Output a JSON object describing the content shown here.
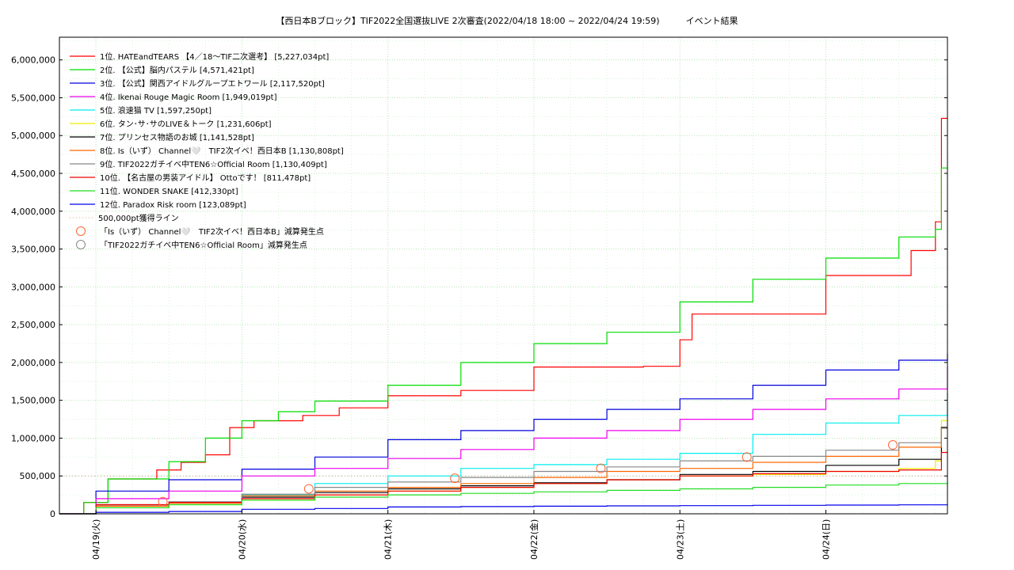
{
  "chart_data": {
    "type": "line",
    "title": "【西日本Bブロック】TIF2022全国選抜LIVE 2次審査(2022/04/18 18:00 ~ 2022/04/24 19:59)　　　イベント結果",
    "xlabel": "",
    "ylabel": "",
    "x_ticks": [
      "04/19(火)",
      "04/20(水)",
      "04/21(木)",
      "04/22(金)",
      "04/23(土)",
      "04/24(日)"
    ],
    "y_ticks": [
      "0",
      "500,000",
      "1,000,000",
      "1,500,000",
      "2,000,000",
      "2,500,000",
      "3,000,000",
      "3,500,000",
      "4,000,000",
      "4,500,000",
      "5,000,000",
      "5,500,000",
      "6,000,000"
    ],
    "ylim": [
      0,
      6300000
    ],
    "xlim": [
      "2022-04-18 18:00",
      "2022-04-24 19:59"
    ],
    "grid": true,
    "legend_position": "top-left",
    "threshold": {
      "label": "500,000pt獲得ライン",
      "value": 500000,
      "color": "#d9a08c"
    },
    "series": [
      {
        "name": "1位. HATEandTEARS 【4／18〜TIF二次選考】 [5,227,034pt]",
        "color": "#ff0000",
        "points": [
          [
            "2022-04-18 18:00",
            0
          ],
          [
            "2022-04-18 22:00",
            150000
          ],
          [
            "2022-04-19 02:00",
            460000
          ],
          [
            "2022-04-19 08:00",
            460000
          ],
          [
            "2022-04-19 10:00",
            580000
          ],
          [
            "2022-04-19 14:00",
            680000
          ],
          [
            "2022-04-19 18:00",
            780000
          ],
          [
            "2022-04-19 22:00",
            1140000
          ],
          [
            "2022-04-20 02:00",
            1230000
          ],
          [
            "2022-04-20 10:00",
            1300000
          ],
          [
            "2022-04-20 16:00",
            1400000
          ],
          [
            "2022-04-21 00:00",
            1560000
          ],
          [
            "2022-04-21 12:00",
            1630000
          ],
          [
            "2022-04-22 00:00",
            1940000
          ],
          [
            "2022-04-22 18:00",
            1950000
          ],
          [
            "2022-04-23 00:00",
            2300000
          ],
          [
            "2022-04-23 02:00",
            2640000
          ],
          [
            "2022-04-23 20:00",
            2640000
          ],
          [
            "2022-04-24 00:00",
            3150000
          ],
          [
            "2022-04-24 14:00",
            3480000
          ],
          [
            "2022-04-24 18:00",
            3860000
          ],
          [
            "2022-04-24 19:00",
            5227034
          ],
          [
            "2022-04-24 19:59",
            5227034
          ]
        ]
      },
      {
        "name": "2位. 【公式】脳内パステル [4,571,421pt]",
        "color": "#00dd00",
        "points": [
          [
            "2022-04-18 18:00",
            0
          ],
          [
            "2022-04-18 22:00",
            150000
          ],
          [
            "2022-04-19 02:00",
            460000
          ],
          [
            "2022-04-19 08:00",
            460000
          ],
          [
            "2022-04-19 12:00",
            690000
          ],
          [
            "2022-04-19 18:00",
            1000000
          ],
          [
            "2022-04-20 00:00",
            1230000
          ],
          [
            "2022-04-20 06:00",
            1350000
          ],
          [
            "2022-04-20 12:00",
            1490000
          ],
          [
            "2022-04-21 00:00",
            1700000
          ],
          [
            "2022-04-21 12:00",
            2000000
          ],
          [
            "2022-04-22 00:00",
            2250000
          ],
          [
            "2022-04-22 12:00",
            2400000
          ],
          [
            "2022-04-23 00:00",
            2800000
          ],
          [
            "2022-04-23 12:00",
            3100000
          ],
          [
            "2022-04-24 00:00",
            3380000
          ],
          [
            "2022-04-24 12:00",
            3660000
          ],
          [
            "2022-04-24 18:00",
            3760000
          ],
          [
            "2022-04-24 19:00",
            4571421
          ],
          [
            "2022-04-24 19:59",
            4571421
          ]
        ]
      },
      {
        "name": "3位. 【公式】関西アイドルグループエトワール [2,117,520pt]",
        "color": "#0000dd",
        "points": [
          [
            "2022-04-18 18:00",
            0
          ],
          [
            "2022-04-19 00:00",
            300000
          ],
          [
            "2022-04-19 12:00",
            450000
          ],
          [
            "2022-04-20 00:00",
            590000
          ],
          [
            "2022-04-20 12:00",
            750000
          ],
          [
            "2022-04-21 00:00",
            980000
          ],
          [
            "2022-04-21 12:00",
            1100000
          ],
          [
            "2022-04-22 00:00",
            1250000
          ],
          [
            "2022-04-22 12:00",
            1380000
          ],
          [
            "2022-04-23 00:00",
            1520000
          ],
          [
            "2022-04-23 12:00",
            1700000
          ],
          [
            "2022-04-24 00:00",
            1900000
          ],
          [
            "2022-04-24 12:00",
            2030000
          ],
          [
            "2022-04-24 19:59",
            2117520
          ]
        ]
      },
      {
        "name": "4位. Ikenai Rouge Magic Room [1,949,019pt]",
        "color": "#ee00ee",
        "points": [
          [
            "2022-04-18 18:00",
            0
          ],
          [
            "2022-04-19 00:00",
            200000
          ],
          [
            "2022-04-19 12:00",
            300000
          ],
          [
            "2022-04-20 00:00",
            500000
          ],
          [
            "2022-04-20 12:00",
            600000
          ],
          [
            "2022-04-21 00:00",
            730000
          ],
          [
            "2022-04-21 12:00",
            850000
          ],
          [
            "2022-04-22 00:00",
            1000000
          ],
          [
            "2022-04-22 12:00",
            1100000
          ],
          [
            "2022-04-23 00:00",
            1250000
          ],
          [
            "2022-04-23 12:00",
            1380000
          ],
          [
            "2022-04-24 00:00",
            1520000
          ],
          [
            "2022-04-24 12:00",
            1650000
          ],
          [
            "2022-04-24 19:59",
            1949019
          ]
        ]
      },
      {
        "name": "5位. 浪速猫 TV [1,597,250pt]",
        "color": "#00eeee",
        "points": [
          [
            "2022-04-18 18:00",
            0
          ],
          [
            "2022-04-19 00:00",
            100000
          ],
          [
            "2022-04-19 12:00",
            150000
          ],
          [
            "2022-04-20 00:00",
            250000
          ],
          [
            "2022-04-20 12:00",
            400000
          ],
          [
            "2022-04-21 00:00",
            500000
          ],
          [
            "2022-04-21 12:00",
            600000
          ],
          [
            "2022-04-22 00:00",
            650000
          ],
          [
            "2022-04-22 12:00",
            720000
          ],
          [
            "2022-04-23 00:00",
            800000
          ],
          [
            "2022-04-23 12:00",
            1050000
          ],
          [
            "2022-04-24 00:00",
            1200000
          ],
          [
            "2022-04-24 12:00",
            1300000
          ],
          [
            "2022-04-24 19:59",
            1597250
          ]
        ]
      },
      {
        "name": "6位. タン･サ･サのLIVE＆トーク [1,231,606pt]",
        "color": "#eeee00",
        "points": [
          [
            "2022-04-18 18:00",
            0
          ],
          [
            "2022-04-19 00:00",
            80000
          ],
          [
            "2022-04-19 12:00",
            120000
          ],
          [
            "2022-04-20 00:00",
            180000
          ],
          [
            "2022-04-20 12:00",
            250000
          ],
          [
            "2022-04-21 00:00",
            300000
          ],
          [
            "2022-04-21 12:00",
            350000
          ],
          [
            "2022-04-22 00:00",
            400000
          ],
          [
            "2022-04-22 12:00",
            450000
          ],
          [
            "2022-04-23 00:00",
            500000
          ],
          [
            "2022-04-23 12:00",
            520000
          ],
          [
            "2022-04-24 00:00",
            560000
          ],
          [
            "2022-04-24 12:00",
            600000
          ],
          [
            "2022-04-24 18:00",
            700000
          ],
          [
            "2022-04-24 19:00",
            1231606
          ],
          [
            "2022-04-24 19:59",
            1231606
          ]
        ]
      },
      {
        "name": "7位. プリンセス物語のお城 [1,141,528pt]",
        "color": "#000000",
        "points": [
          [
            "2022-04-18 18:00",
            0
          ],
          [
            "2022-04-19 00:00",
            100000
          ],
          [
            "2022-04-19 12:00",
            150000
          ],
          [
            "2022-04-20 00:00",
            220000
          ],
          [
            "2022-04-20 12:00",
            280000
          ],
          [
            "2022-04-21 00:00",
            330000
          ],
          [
            "2022-04-21 12:00",
            370000
          ],
          [
            "2022-04-22 00:00",
            410000
          ],
          [
            "2022-04-22 12:00",
            450000
          ],
          [
            "2022-04-23 00:00",
            520000
          ],
          [
            "2022-04-23 12:00",
            560000
          ],
          [
            "2022-04-24 00:00",
            640000
          ],
          [
            "2022-04-24 12:00",
            720000
          ],
          [
            "2022-04-24 19:00",
            1141528
          ],
          [
            "2022-04-24 19:59",
            1141528
          ]
        ]
      },
      {
        "name": "8位. Is（いず） Channel🤍　TIF2次イベ！西日本B [1,130,808pt]",
        "color": "#ff6600",
        "points": [
          [
            "2022-04-18 18:00",
            0
          ],
          [
            "2022-04-19 00:00",
            100000
          ],
          [
            "2022-04-19 12:00",
            140000
          ],
          [
            "2022-04-20 00:00",
            240000
          ],
          [
            "2022-04-20 12:00",
            300000
          ],
          [
            "2022-04-21 00:00",
            350000
          ],
          [
            "2022-04-21 12:00",
            400000
          ],
          [
            "2022-04-22 00:00",
            480000
          ],
          [
            "2022-04-22 12:00",
            560000
          ],
          [
            "2022-04-23 00:00",
            600000
          ],
          [
            "2022-04-23 12:00",
            680000
          ],
          [
            "2022-04-24 00:00",
            760000
          ],
          [
            "2022-04-24 12:00",
            880000
          ],
          [
            "2022-04-24 19:00",
            1130808
          ],
          [
            "2022-04-24 19:59",
            1130808
          ]
        ]
      },
      {
        "name": "9位. TIF2022ガチイベ中TEN6☆Official Room [1,130,409pt]",
        "color": "#888888",
        "points": [
          [
            "2022-04-18 18:00",
            0
          ],
          [
            "2022-04-19 00:00",
            120000
          ],
          [
            "2022-04-19 12:00",
            160000
          ],
          [
            "2022-04-20 00:00",
            260000
          ],
          [
            "2022-04-20 12:00",
            350000
          ],
          [
            "2022-04-21 00:00",
            420000
          ],
          [
            "2022-04-21 12:00",
            480000
          ],
          [
            "2022-04-22 00:00",
            560000
          ],
          [
            "2022-04-22 12:00",
            620000
          ],
          [
            "2022-04-23 00:00",
            700000
          ],
          [
            "2022-04-23 12:00",
            760000
          ],
          [
            "2022-04-24 00:00",
            840000
          ],
          [
            "2022-04-24 12:00",
            940000
          ],
          [
            "2022-04-24 19:00",
            1130409
          ],
          [
            "2022-04-24 19:59",
            1130409
          ]
        ]
      },
      {
        "name": "10位. 【名古屋の男装アイドル】 Ottoです！ [811,478pt]",
        "color": "#ee0000",
        "points": [
          [
            "2022-04-18 18:00",
            0
          ],
          [
            "2022-04-19 00:00",
            120000
          ],
          [
            "2022-04-19 12:00",
            150000
          ],
          [
            "2022-04-20 00:00",
            200000
          ],
          [
            "2022-04-20 12:00",
            250000
          ],
          [
            "2022-04-21 00:00",
            300000
          ],
          [
            "2022-04-21 12:00",
            350000
          ],
          [
            "2022-04-22 00:00",
            400000
          ],
          [
            "2022-04-22 12:00",
            450000
          ],
          [
            "2022-04-23 00:00",
            500000
          ],
          [
            "2022-04-23 12:00",
            530000
          ],
          [
            "2022-04-24 00:00",
            560000
          ],
          [
            "2022-04-24 12:00",
            580000
          ],
          [
            "2022-04-24 19:00",
            811478
          ],
          [
            "2022-04-24 19:59",
            811478
          ]
        ]
      },
      {
        "name": "11位. WONDER SNAKE [412,330pt]",
        "color": "#22dd22",
        "points": [
          [
            "2022-04-18 18:00",
            0
          ],
          [
            "2022-04-19 00:00",
            80000
          ],
          [
            "2022-04-19 12:00",
            120000
          ],
          [
            "2022-04-20 00:00",
            180000
          ],
          [
            "2022-04-20 12:00",
            220000
          ],
          [
            "2022-04-21 00:00",
            250000
          ],
          [
            "2022-04-21 12:00",
            270000
          ],
          [
            "2022-04-22 00:00",
            290000
          ],
          [
            "2022-04-22 12:00",
            310000
          ],
          [
            "2022-04-23 00:00",
            330000
          ],
          [
            "2022-04-23 12:00",
            350000
          ],
          [
            "2022-04-24 00:00",
            380000
          ],
          [
            "2022-04-24 12:00",
            400000
          ],
          [
            "2022-04-24 19:59",
            412330
          ]
        ]
      },
      {
        "name": "12位. Paradox Risk room [123,089pt]",
        "color": "#0000ee",
        "points": [
          [
            "2022-04-18 18:00",
            0
          ],
          [
            "2022-04-19 00:00",
            20000
          ],
          [
            "2022-04-19 12:00",
            30000
          ],
          [
            "2022-04-20 00:00",
            60000
          ],
          [
            "2022-04-20 12:00",
            70000
          ],
          [
            "2022-04-21 00:00",
            90000
          ],
          [
            "2022-04-21 12:00",
            95000
          ],
          [
            "2022-04-22 00:00",
            100000
          ],
          [
            "2022-04-22 12:00",
            105000
          ],
          [
            "2022-04-23 00:00",
            108000
          ],
          [
            "2022-04-23 12:00",
            112000
          ],
          [
            "2022-04-24 00:00",
            115000
          ],
          [
            "2022-04-24 12:00",
            118000
          ],
          [
            "2022-04-24 19:59",
            123089
          ]
        ]
      }
    ],
    "deduction_markers": [
      {
        "label": "「Is（いず） Channel🤍　TIF2次イベ！西日本B」減算発生点",
        "color": "#ff6633",
        "points": [
          [
            "2022-04-19 11:00",
            160000
          ],
          [
            "2022-04-20 11:00",
            330000
          ],
          [
            "2022-04-21 11:00",
            470000
          ],
          [
            "2022-04-22 11:00",
            600000
          ],
          [
            "2022-04-23 11:00",
            750000
          ],
          [
            "2022-04-24 11:00",
            910000
          ]
        ]
      },
      {
        "label": "「TIF2022ガチイベ中TEN6☆Official Room」減算発生点",
        "color": "#888888",
        "points": []
      }
    ]
  }
}
